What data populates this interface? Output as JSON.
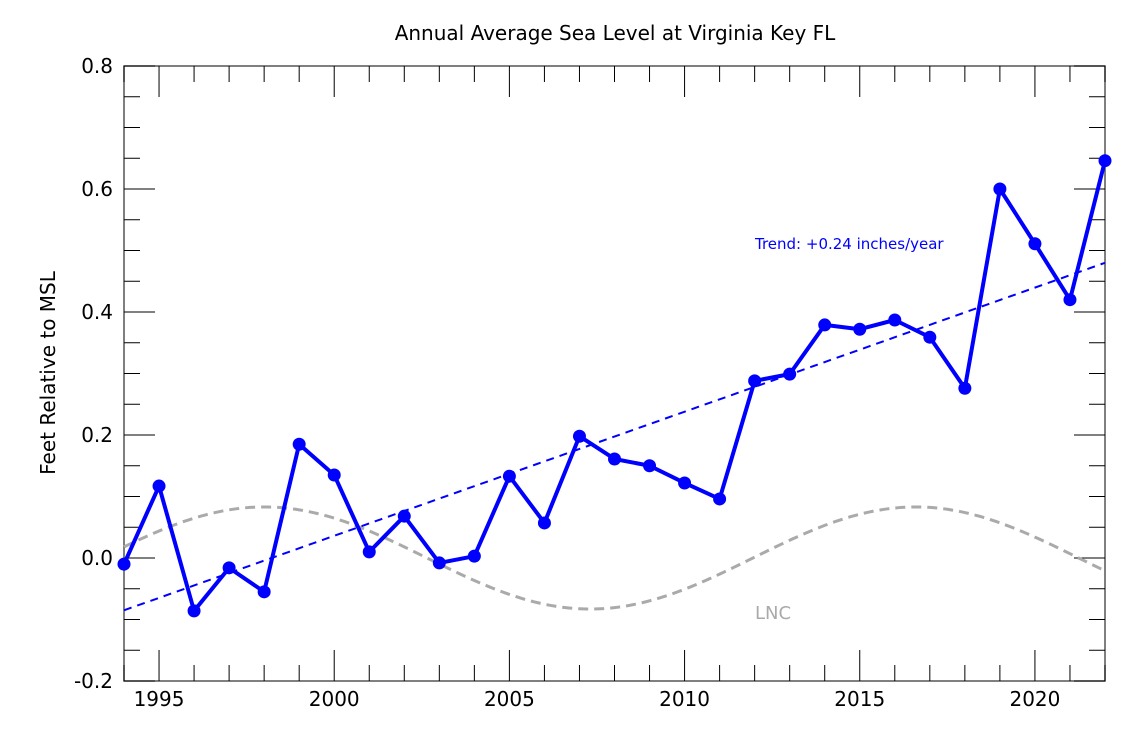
{
  "chart_data": {
    "type": "line",
    "title": "Annual Average Sea Level at Virginia Key FL",
    "xlabel": "",
    "ylabel": "Feet Relative to MSL",
    "xlim": [
      1994,
      2022
    ],
    "ylim": [
      -0.2,
      0.8
    ],
    "x_ticks": [
      1995,
      2000,
      2005,
      2010,
      2015,
      2020
    ],
    "y_ticks": [
      "-0.2",
      "0.0",
      "0.2",
      "0.4",
      "0.6",
      "0.8"
    ],
    "grid": false,
    "series": [
      {
        "color": "#0000ff",
        "x": [
          1994,
          1995,
          1996,
          1997,
          1998,
          1999,
          2000,
          2001,
          2002,
          2003,
          2004,
          2005,
          2006,
          2007,
          2008,
          2009,
          2010,
          2011,
          2012,
          2013,
          2014,
          2015,
          2016,
          2017,
          2018,
          2019,
          2020,
          2021,
          2022
        ],
        "values": [
          -0.01,
          0.117,
          -0.086,
          -0.016,
          -0.055,
          0.185,
          0.135,
          0.01,
          0.068,
          -0.008,
          0.003,
          0.133,
          0.057,
          0.198,
          0.161,
          0.15,
          0.122,
          0.096,
          0.288,
          0.299,
          0.379,
          0.372,
          0.387,
          0.359,
          0.276,
          0.6,
          0.511,
          0.42,
          0.646
        ]
      }
    ],
    "trend": {
      "label": "Trend: +0.24 inches/year",
      "color": "#0000ff",
      "x": [
        1994,
        2022
      ],
      "values": [
        -0.085,
        0.48
      ]
    },
    "lnc": {
      "label": "LNC",
      "color": "#aaaaaa",
      "amplitude": 0.083,
      "period_years": 18.6,
      "peak_year": 1998.0
    }
  }
}
